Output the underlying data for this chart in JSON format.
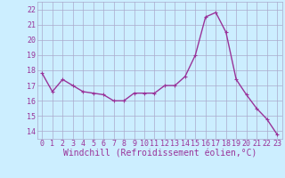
{
  "x": [
    0,
    1,
    2,
    3,
    4,
    5,
    6,
    7,
    8,
    9,
    10,
    11,
    12,
    13,
    14,
    15,
    16,
    17,
    18,
    19,
    20,
    21,
    22,
    23
  ],
  "y": [
    17.8,
    16.6,
    17.4,
    17.0,
    16.6,
    16.5,
    16.4,
    16.0,
    16.0,
    16.5,
    16.5,
    16.5,
    17.0,
    17.0,
    17.6,
    19.0,
    21.5,
    21.8,
    20.5,
    17.4,
    16.4,
    15.5,
    14.8,
    13.8
  ],
  "line_color": "#993399",
  "marker": "+",
  "marker_size": 3,
  "bg_color": "#cceeff",
  "grid_color": "#aaaacc",
  "xlabel": "Windchill (Refroidissement éolien,°C)",
  "ylim": [
    13.5,
    22.5
  ],
  "xlim": [
    -0.5,
    23.5
  ],
  "yticks": [
    14,
    15,
    16,
    17,
    18,
    19,
    20,
    21,
    22
  ],
  "xticks": [
    0,
    1,
    2,
    3,
    4,
    5,
    6,
    7,
    8,
    9,
    10,
    11,
    12,
    13,
    14,
    15,
    16,
    17,
    18,
    19,
    20,
    21,
    22,
    23
  ],
  "xlabel_fontsize": 7,
  "tick_fontsize": 6,
  "line_width": 1.0
}
